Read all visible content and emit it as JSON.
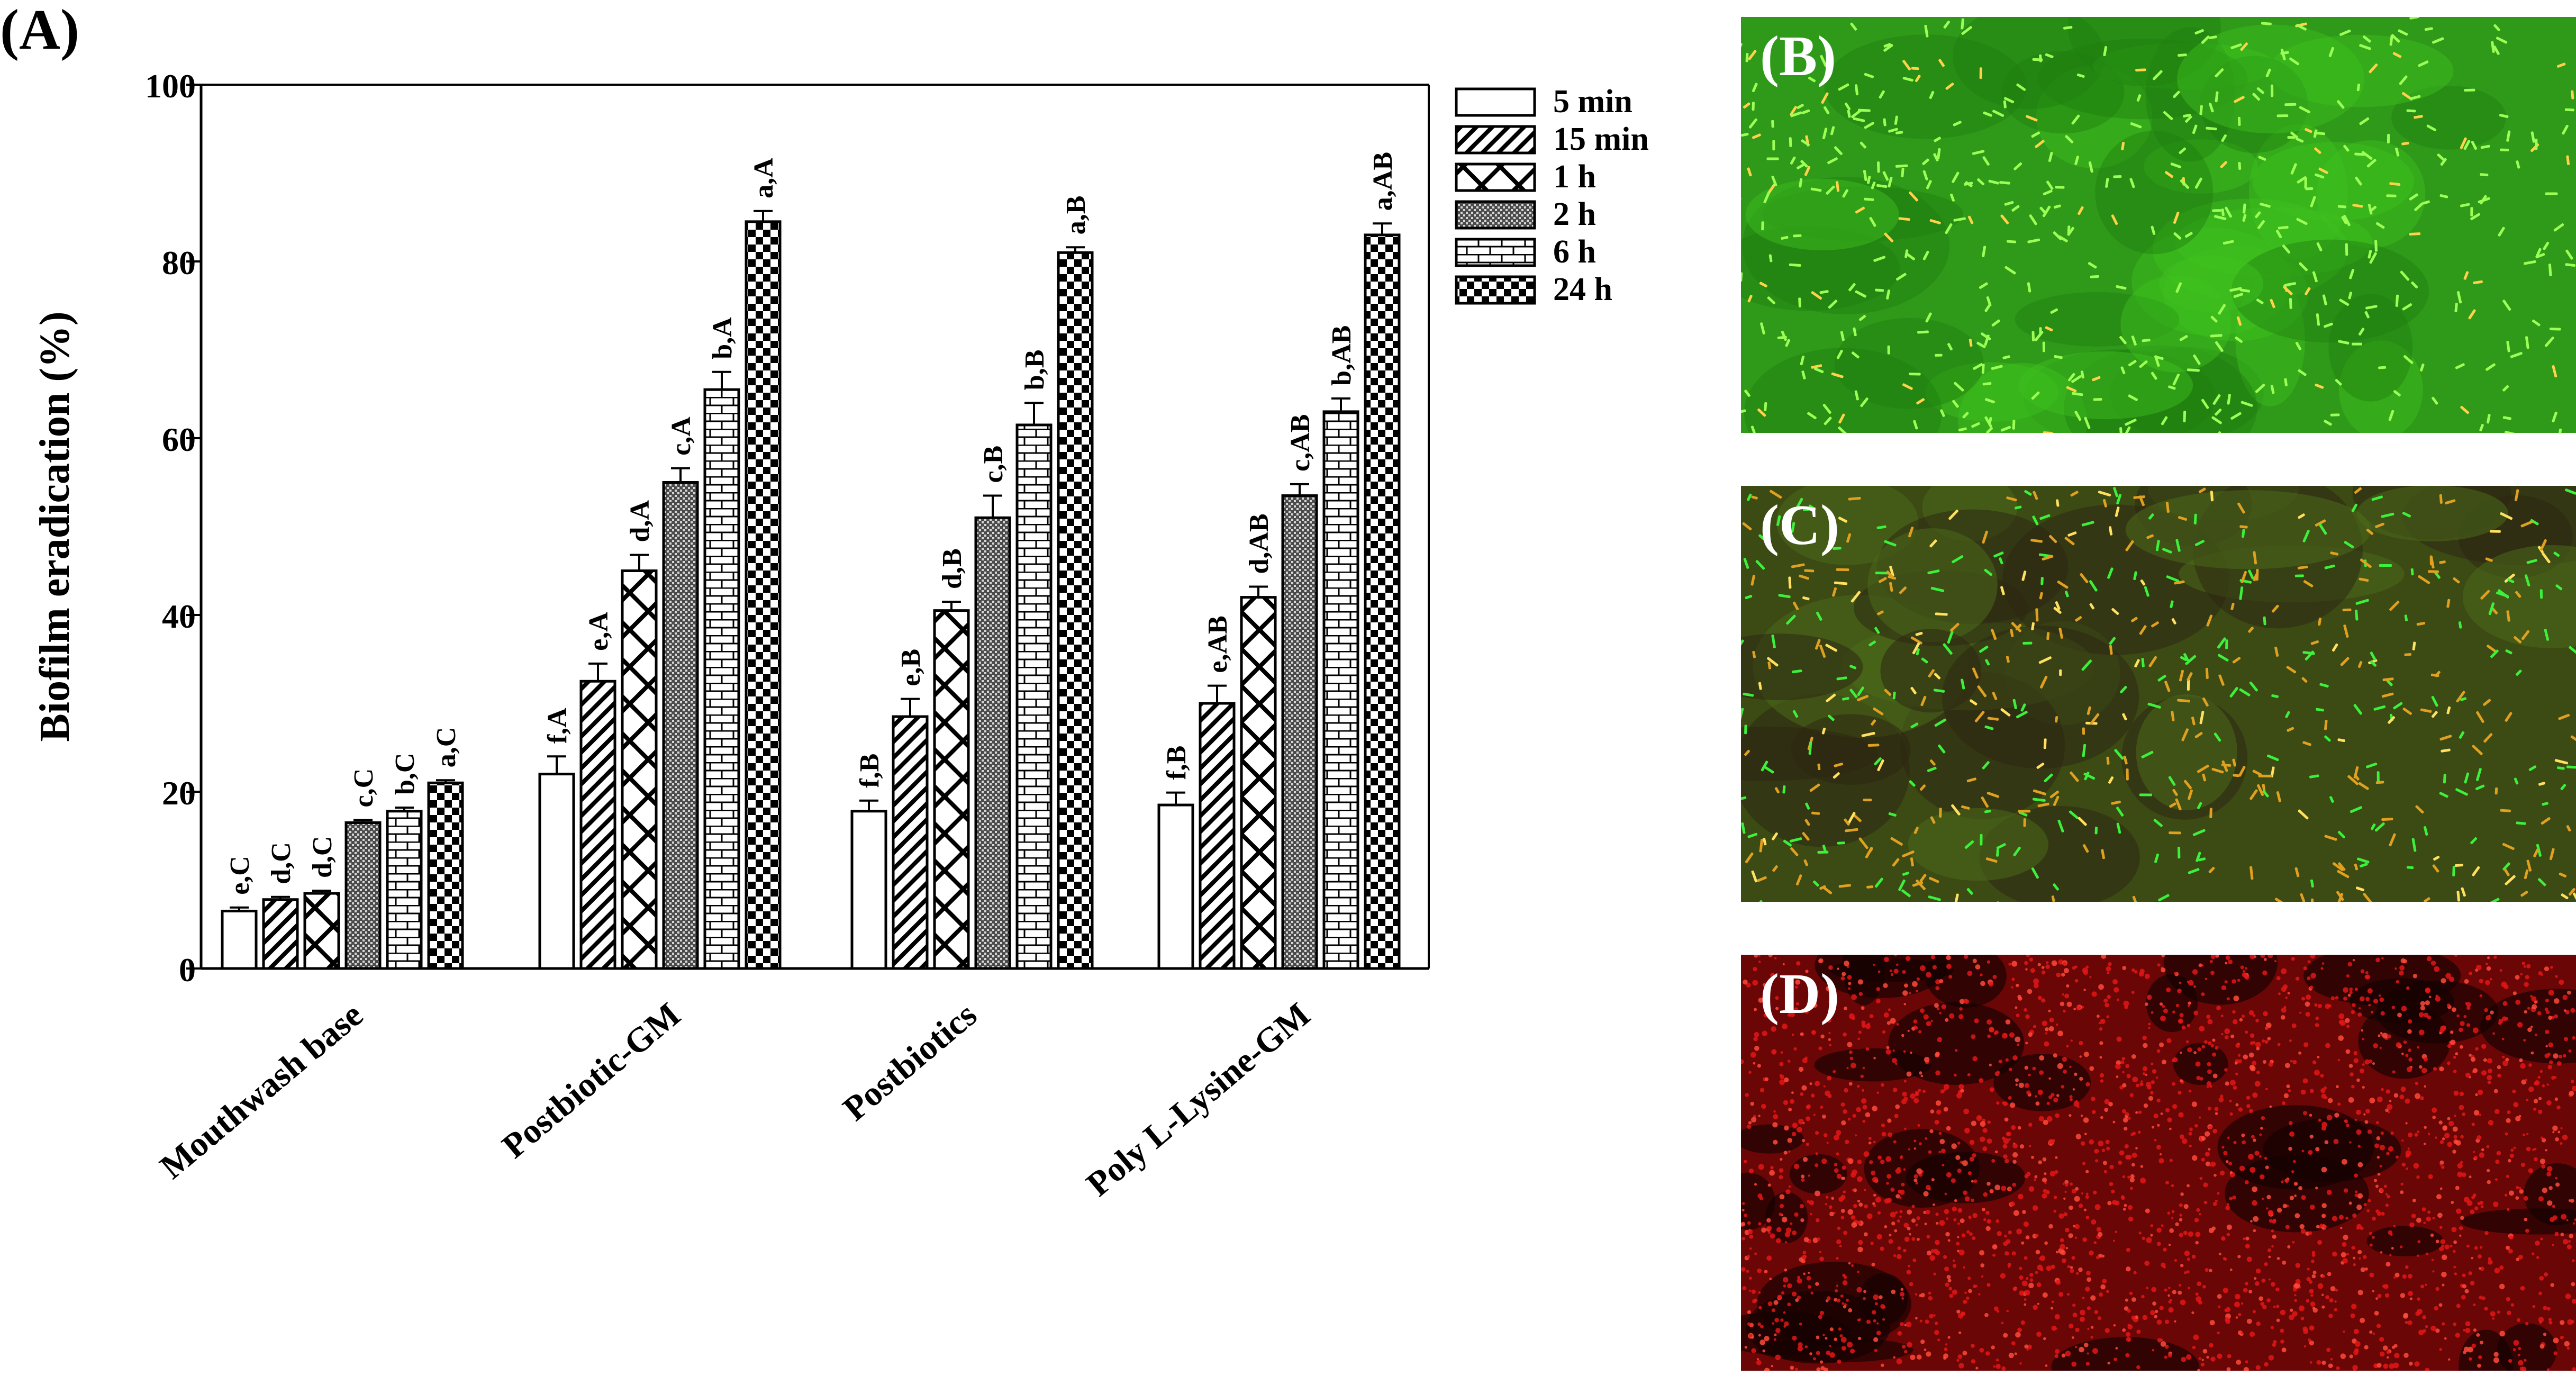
{
  "panel_labels": {
    "a": "(A)",
    "b": "(B)",
    "c": "(C)",
    "d": "(D)"
  },
  "chart_data": {
    "type": "bar",
    "title": "",
    "xlabel": "",
    "ylabel": "Biofilm eradication (%)",
    "ylim": [
      0,
      100
    ],
    "yticks": [
      "0",
      "20",
      "40",
      "60",
      "80",
      "100"
    ],
    "categories": [
      "Mouthwash base",
      "Postbiotic-GM",
      "Postbiotics",
      "Poly L-Lysine-GM"
    ],
    "legend_position": "top-right",
    "series": [
      {
        "name": "5 min",
        "pattern": "white",
        "values": [
          6.5,
          22,
          17.8,
          18.5
        ],
        "errors": [
          0.4,
          2.0,
          1.2,
          1.4
        ],
        "labels": [
          "e,C",
          "f,A",
          "f,B",
          "f,B"
        ]
      },
      {
        "name": "15 min",
        "pattern": "diagonal",
        "values": [
          7.8,
          32.5,
          28.5,
          30
        ],
        "errors": [
          0.3,
          2.0,
          2.0,
          2.0
        ],
        "labels": [
          "d,C",
          "e,A",
          "e,B",
          "e,AB"
        ]
      },
      {
        "name": "1 h",
        "pattern": "crosshatch",
        "values": [
          8.5,
          45,
          40.5,
          42
        ],
        "errors": [
          0.3,
          1.8,
          1.0,
          1.2
        ],
        "labels": [
          "d,C",
          "d,A",
          "d,B",
          "d,AB"
        ]
      },
      {
        "name": "2 h",
        "pattern": "dotted",
        "values": [
          16.5,
          55,
          51,
          53.5
        ],
        "errors": [
          0.3,
          1.6,
          2.5,
          1.3
        ],
        "labels": [
          "c,C",
          "c,A",
          "c,B",
          "c,AB"
        ]
      },
      {
        "name": "6 h",
        "pattern": "brick",
        "values": [
          17.8,
          65.5,
          61.5,
          63
        ],
        "errors": [
          0.4,
          2.0,
          2.5,
          1.5
        ],
        "labels": [
          "b,C",
          "b,A",
          "b,B",
          "b,AB"
        ]
      },
      {
        "name": "24 h",
        "pattern": "checker",
        "values": [
          21,
          84.5,
          81,
          83
        ],
        "errors": [
          0.3,
          1.2,
          0.6,
          1.3
        ],
        "labels": [
          "a,C",
          "a,A",
          "a,B",
          "a,AB"
        ]
      }
    ]
  },
  "images": [
    {
      "label": "(B)",
      "tone": "green fluorescence"
    },
    {
      "label": "(C)",
      "tone": "mixed green / orange fluorescence"
    },
    {
      "label": "(D)",
      "tone": "red fluorescence"
    }
  ],
  "colors": {
    "stain_green": "#2f9a19",
    "stain_red": "#d21414",
    "stain_orange": "#e0a020"
  }
}
